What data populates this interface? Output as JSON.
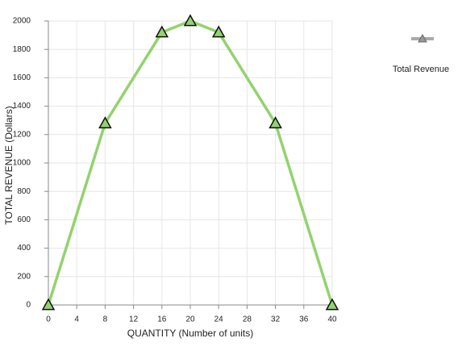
{
  "chart_data": {
    "type": "line",
    "x_label": "QUANTITY (Number of units)",
    "y_label": "TOTAL REVENUE (Dollars)",
    "x": [
      0,
      8,
      16,
      20,
      24,
      32,
      40
    ],
    "series": [
      {
        "name": "Total Revenue",
        "color": "#92d36e",
        "values": [
          0,
          1280,
          1920,
          2000,
          1920,
          1280,
          0
        ]
      }
    ],
    "xlim": [
      0,
      40
    ],
    "xticks": [
      0,
      4,
      8,
      12,
      16,
      20,
      24,
      28,
      32,
      36,
      40
    ],
    "ylim": [
      0,
      2000
    ],
    "yticks": [
      0,
      200,
      400,
      600,
      800,
      1000,
      1200,
      1400,
      1600,
      1800,
      2000
    ],
    "grid": true,
    "legend": "right"
  }
}
